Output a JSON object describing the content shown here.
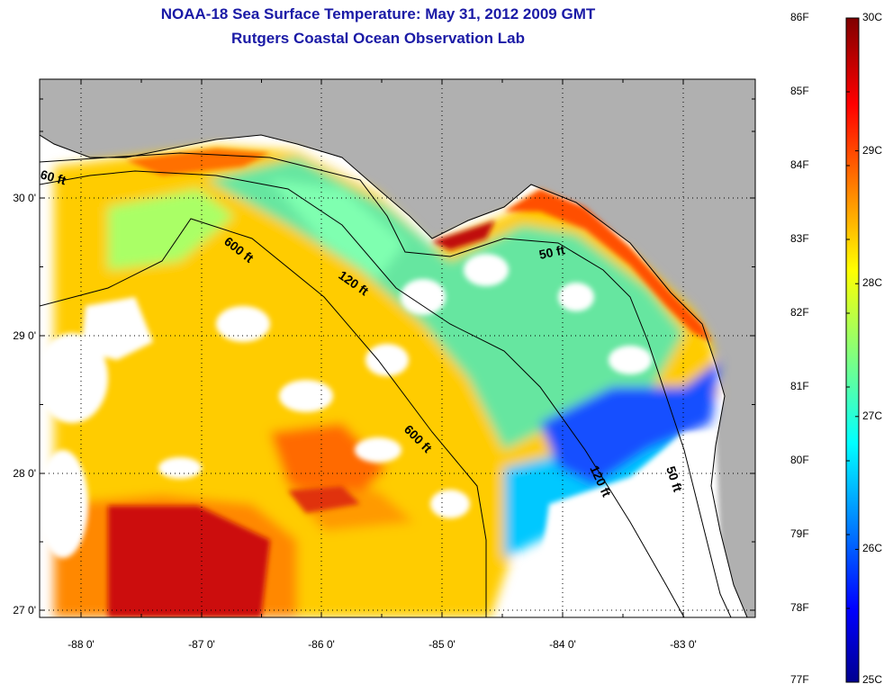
{
  "title": "NOAA-18 Sea Surface Temperature:  May 31, 2012 2009 GMT",
  "subtitle": "Rutgers Coastal Ocean Observation Lab",
  "longitude_ticks": [
    "-88 0'",
    "-87 0'",
    "-86 0'",
    "-85 0'",
    "-84 0'",
    "-83 0'"
  ],
  "latitude_ticks": [
    "30 0'",
    "29 0'",
    "28 0'",
    "27 0'"
  ],
  "isobath_labels": [
    "60 ft",
    "600 ft",
    "120 ft",
    "50 ft",
    "600 ft",
    "120 ft",
    "50 ft"
  ],
  "colorbar": {
    "fahrenheit": [
      "86F",
      "85F",
      "84F",
      "83F",
      "82F",
      "81F",
      "80F",
      "79F",
      "78F",
      "77F"
    ],
    "celsius": [
      "30C",
      "29C",
      "28C",
      "27C",
      "26C",
      "25C"
    ],
    "range_c": [
      25,
      30
    ],
    "colormap": "jet"
  },
  "colors": {
    "title": "#1a1aa6",
    "land": "#b0b0b0",
    "cloud": "#ffffff"
  }
}
